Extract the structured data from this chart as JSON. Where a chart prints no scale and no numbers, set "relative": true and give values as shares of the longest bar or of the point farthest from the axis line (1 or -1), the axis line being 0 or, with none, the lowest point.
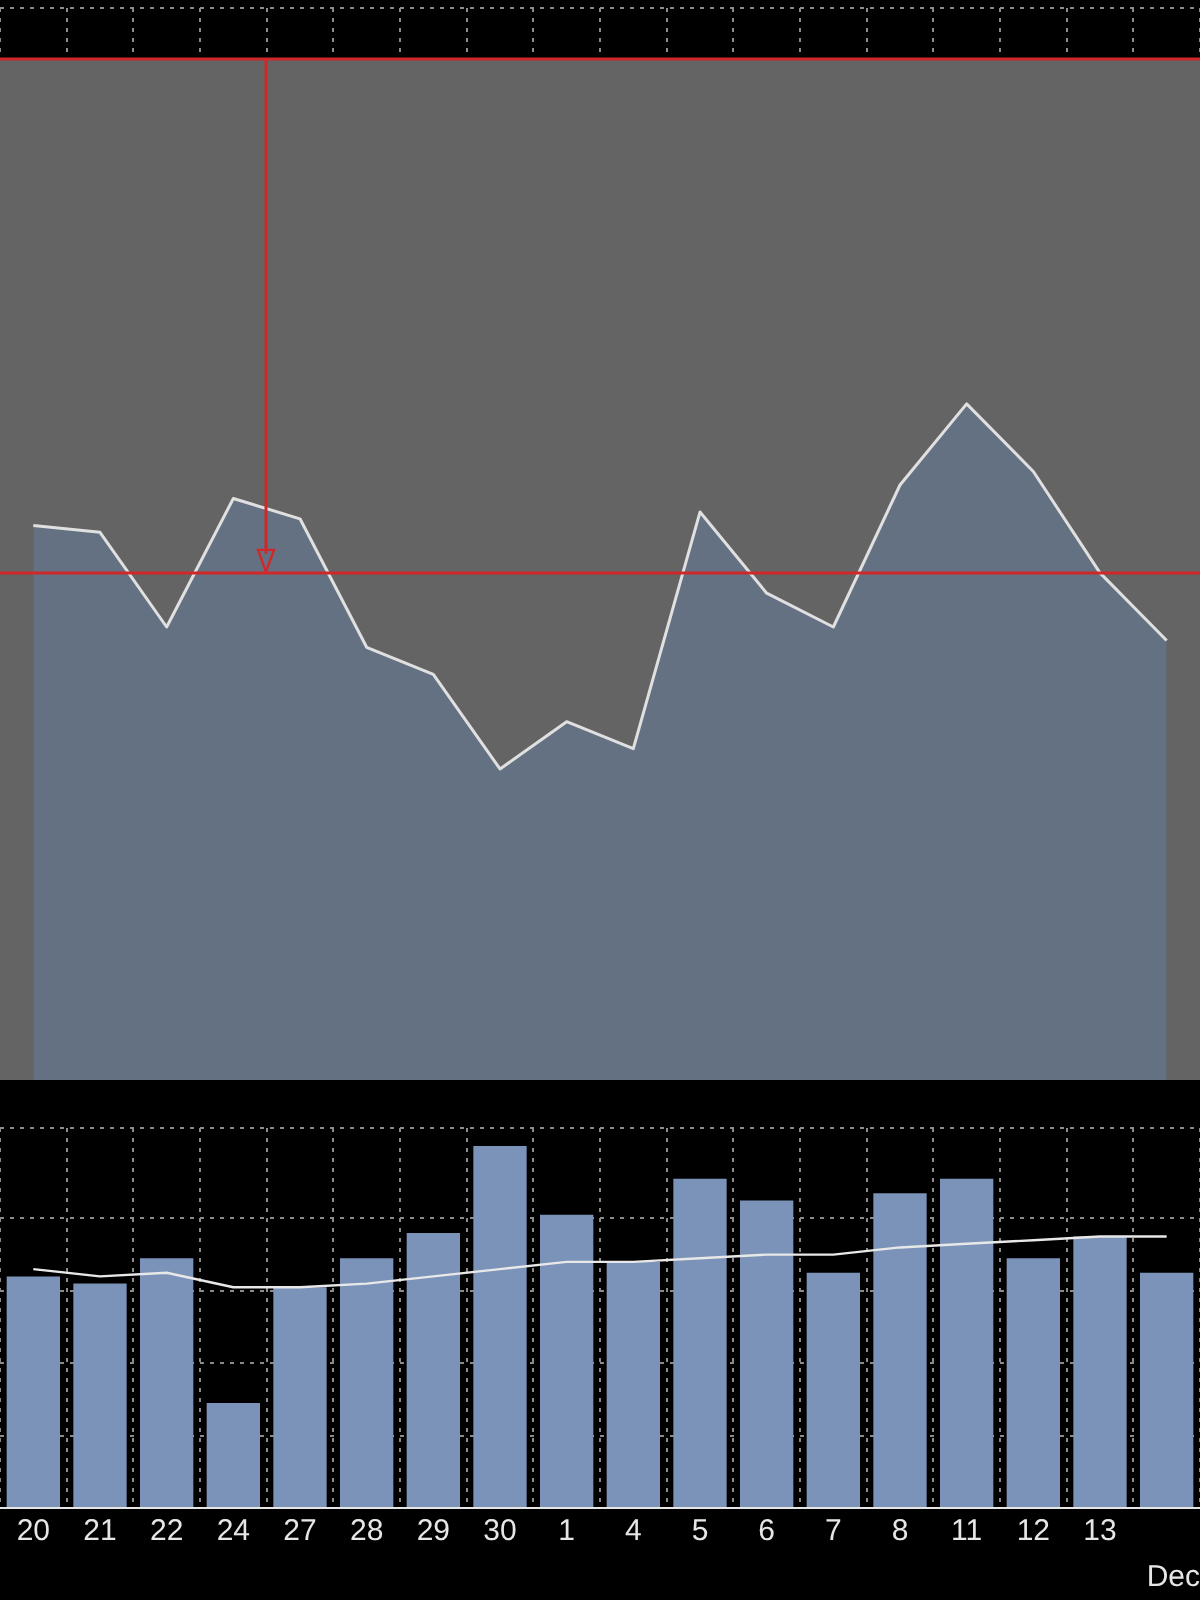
{
  "chart_data": [
    {
      "type": "area",
      "relative": true,
      "tick_labels": false,
      "grid": true,
      "categories": [
        null,
        null,
        null,
        null,
        null,
        null,
        null,
        null,
        null,
        null,
        null,
        null,
        null,
        null,
        null,
        null,
        null,
        null
      ],
      "series": [
        {
          "color": "#e0e0e0",
          "values": [
            0.82,
            0.81,
            0.67,
            0.86,
            0.83,
            0.64,
            0.6,
            0.46,
            0.53,
            0.49,
            0.84,
            0.72,
            0.67,
            0.88,
            1.0,
            0.9,
            0.75,
            0.65
          ]
        }
      ],
      "bands": [
        {
          "axis": "y",
          "from": 0,
          "to": 1.51,
          "color": "#646464"
        }
      ],
      "ref_lines": [
        {
          "axis": "y",
          "value": 1.51,
          "color": "#d02828"
        },
        {
          "axis": "y",
          "value": 0.75,
          "color": "#d02828"
        }
      ]
    },
    {
      "type": "bar",
      "relative": true,
      "tick_labels": "x",
      "grid": true,
      "xlabel": "Dec",
      "categories": [
        "20",
        "21",
        "22",
        "24",
        "27",
        "28",
        "29",
        "30",
        "1",
        "4",
        "5",
        "6",
        "7",
        "8",
        "11",
        "12",
        "13",
        null
      ],
      "series": [
        {
          "color": "#7b93b8",
          "values": [
            0.64,
            0.62,
            0.69,
            0.29,
            0.61,
            0.69,
            0.76,
            1.0,
            0.81,
            0.68,
            0.91,
            0.85,
            0.65,
            0.87,
            0.91,
            0.69,
            0.75,
            0.65
          ]
        },
        {
          "type": "line",
          "color": "#e8e8e8",
          "values": [
            0.66,
            0.64,
            0.65,
            0.61,
            0.61,
            0.62,
            0.64,
            0.66,
            0.68,
            0.68,
            0.69,
            0.7,
            0.7,
            0.72,
            0.73,
            0.74,
            0.75,
            0.75
          ]
        }
      ]
    }
  ]
}
